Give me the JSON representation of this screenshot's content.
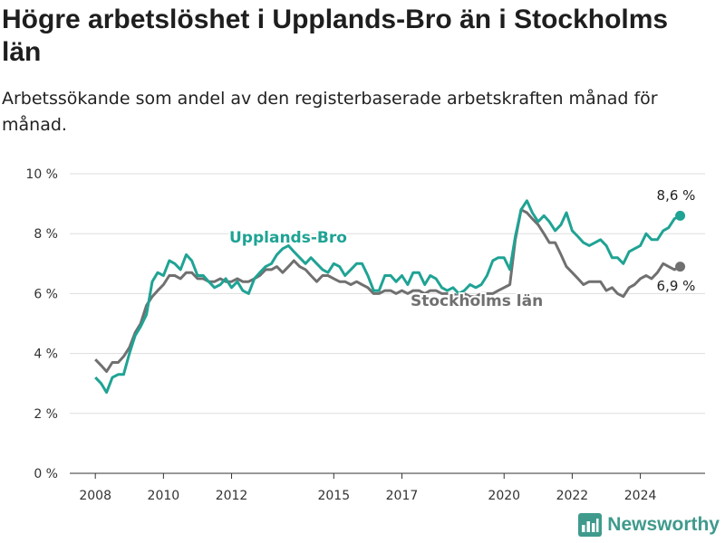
{
  "title": "Högre arbetslöshet i Upplands-Bro än i Stockholms län",
  "subtitle": "Arbetssökande som andel av den registerbaserade arbetskraften månad för månad.",
  "brand": {
    "name": "Newsworthy",
    "color": "#3f9a8c"
  },
  "chart_data": {
    "type": "line",
    "xlabel": "",
    "ylabel": "",
    "ylim": [
      0,
      10
    ],
    "xlim": [
      2007.25,
      2025.9
    ],
    "x_ticks": [
      {
        "value": 2008,
        "label": "2008"
      },
      {
        "value": 2010,
        "label": "2010"
      },
      {
        "value": 2012,
        "label": "2012"
      },
      {
        "value": 2015,
        "label": "2015"
      },
      {
        "value": 2017,
        "label": "2017"
      },
      {
        "value": 2020,
        "label": "2020"
      },
      {
        "value": 2022,
        "label": "2022"
      },
      {
        "value": 2024,
        "label": "2024"
      }
    ],
    "y_ticks": [
      {
        "value": 0,
        "label": "0 %"
      },
      {
        "value": 2,
        "label": "2 %"
      },
      {
        "value": 4,
        "label": "4 %"
      },
      {
        "value": 6,
        "label": "6 %"
      },
      {
        "value": 8,
        "label": "8 %"
      },
      {
        "value": 10,
        "label": "10 %"
      }
    ],
    "grid": true,
    "series": [
      {
        "name": "Upplands-Bro",
        "color": "#1fa394",
        "end_label": "8,6 %",
        "points": [
          [
            2008.0,
            3.2
          ],
          [
            2008.17,
            3.0
          ],
          [
            2008.33,
            2.7
          ],
          [
            2008.5,
            3.2
          ],
          [
            2008.67,
            3.3
          ],
          [
            2008.83,
            3.3
          ],
          [
            2009.0,
            4.0
          ],
          [
            2009.17,
            4.6
          ],
          [
            2009.33,
            4.9
          ],
          [
            2009.5,
            5.3
          ],
          [
            2009.67,
            6.4
          ],
          [
            2009.83,
            6.7
          ],
          [
            2010.0,
            6.6
          ],
          [
            2010.17,
            7.1
          ],
          [
            2010.33,
            7.0
          ],
          [
            2010.5,
            6.8
          ],
          [
            2010.67,
            7.3
          ],
          [
            2010.83,
            7.1
          ],
          [
            2011.0,
            6.6
          ],
          [
            2011.17,
            6.6
          ],
          [
            2011.33,
            6.4
          ],
          [
            2011.5,
            6.2
          ],
          [
            2011.67,
            6.3
          ],
          [
            2011.83,
            6.5
          ],
          [
            2012.0,
            6.2
          ],
          [
            2012.17,
            6.4
          ],
          [
            2012.33,
            6.1
          ],
          [
            2012.5,
            6.0
          ],
          [
            2012.67,
            6.5
          ],
          [
            2012.83,
            6.7
          ],
          [
            2013.0,
            6.9
          ],
          [
            2013.17,
            7.0
          ],
          [
            2013.33,
            7.3
          ],
          [
            2013.5,
            7.5
          ],
          [
            2013.67,
            7.6
          ],
          [
            2013.83,
            7.4
          ],
          [
            2014.0,
            7.2
          ],
          [
            2014.17,
            7.0
          ],
          [
            2014.33,
            7.2
          ],
          [
            2014.5,
            7.0
          ],
          [
            2014.67,
            6.8
          ],
          [
            2014.83,
            6.7
          ],
          [
            2015.0,
            7.0
          ],
          [
            2015.17,
            6.9
          ],
          [
            2015.33,
            6.6
          ],
          [
            2015.5,
            6.8
          ],
          [
            2015.67,
            7.0
          ],
          [
            2015.83,
            7.0
          ],
          [
            2016.0,
            6.6
          ],
          [
            2016.17,
            6.1
          ],
          [
            2016.33,
            6.1
          ],
          [
            2016.5,
            6.6
          ],
          [
            2016.67,
            6.6
          ],
          [
            2016.83,
            6.4
          ],
          [
            2017.0,
            6.6
          ],
          [
            2017.17,
            6.3
          ],
          [
            2017.33,
            6.7
          ],
          [
            2017.5,
            6.7
          ],
          [
            2017.67,
            6.3
          ],
          [
            2017.83,
            6.6
          ],
          [
            2018.0,
            6.5
          ],
          [
            2018.17,
            6.2
          ],
          [
            2018.33,
            6.1
          ],
          [
            2018.5,
            6.2
          ],
          [
            2018.67,
            6.0
          ],
          [
            2018.83,
            6.1
          ],
          [
            2019.0,
            6.3
          ],
          [
            2019.17,
            6.2
          ],
          [
            2019.33,
            6.3
          ],
          [
            2019.5,
            6.6
          ],
          [
            2019.67,
            7.1
          ],
          [
            2019.83,
            7.2
          ],
          [
            2020.0,
            7.2
          ],
          [
            2020.17,
            6.8
          ],
          [
            2020.33,
            7.9
          ],
          [
            2020.5,
            8.8
          ],
          [
            2020.67,
            9.1
          ],
          [
            2020.83,
            8.7
          ],
          [
            2021.0,
            8.4
          ],
          [
            2021.17,
            8.6
          ],
          [
            2021.33,
            8.4
          ],
          [
            2021.5,
            8.1
          ],
          [
            2021.67,
            8.3
          ],
          [
            2021.83,
            8.7
          ],
          [
            2022.0,
            8.1
          ],
          [
            2022.17,
            7.9
          ],
          [
            2022.33,
            7.7
          ],
          [
            2022.5,
            7.6
          ],
          [
            2022.67,
            7.7
          ],
          [
            2022.83,
            7.8
          ],
          [
            2023.0,
            7.6
          ],
          [
            2023.17,
            7.2
          ],
          [
            2023.33,
            7.2
          ],
          [
            2023.5,
            7.0
          ],
          [
            2023.67,
            7.4
          ],
          [
            2023.83,
            7.5
          ],
          [
            2024.0,
            7.6
          ],
          [
            2024.17,
            8.0
          ],
          [
            2024.33,
            7.8
          ],
          [
            2024.5,
            7.8
          ],
          [
            2024.67,
            8.1
          ],
          [
            2024.83,
            8.2
          ],
          [
            2025.0,
            8.5
          ],
          [
            2025.17,
            8.6
          ]
        ]
      },
      {
        "name": "Stockholms län",
        "color": "#707070",
        "end_label": "6,9 %",
        "points": [
          [
            2008.0,
            3.8
          ],
          [
            2008.17,
            3.6
          ],
          [
            2008.33,
            3.4
          ],
          [
            2008.5,
            3.7
          ],
          [
            2008.67,
            3.7
          ],
          [
            2008.83,
            3.9
          ],
          [
            2009.0,
            4.2
          ],
          [
            2009.17,
            4.7
          ],
          [
            2009.33,
            5.0
          ],
          [
            2009.5,
            5.6
          ],
          [
            2009.67,
            5.9
          ],
          [
            2009.83,
            6.1
          ],
          [
            2010.0,
            6.3
          ],
          [
            2010.17,
            6.6
          ],
          [
            2010.33,
            6.6
          ],
          [
            2010.5,
            6.5
          ],
          [
            2010.67,
            6.7
          ],
          [
            2010.83,
            6.7
          ],
          [
            2011.0,
            6.5
          ],
          [
            2011.17,
            6.5
          ],
          [
            2011.33,
            6.4
          ],
          [
            2011.5,
            6.4
          ],
          [
            2011.67,
            6.5
          ],
          [
            2011.83,
            6.4
          ],
          [
            2012.0,
            6.4
          ],
          [
            2012.17,
            6.5
          ],
          [
            2012.33,
            6.4
          ],
          [
            2012.5,
            6.4
          ],
          [
            2012.67,
            6.5
          ],
          [
            2012.83,
            6.6
          ],
          [
            2013.0,
            6.8
          ],
          [
            2013.17,
            6.8
          ],
          [
            2013.33,
            6.9
          ],
          [
            2013.5,
            6.7
          ],
          [
            2013.67,
            6.9
          ],
          [
            2013.83,
            7.1
          ],
          [
            2014.0,
            6.9
          ],
          [
            2014.17,
            6.8
          ],
          [
            2014.33,
            6.6
          ],
          [
            2014.5,
            6.4
          ],
          [
            2014.67,
            6.6
          ],
          [
            2014.83,
            6.6
          ],
          [
            2015.0,
            6.5
          ],
          [
            2015.17,
            6.4
          ],
          [
            2015.33,
            6.4
          ],
          [
            2015.5,
            6.3
          ],
          [
            2015.67,
            6.4
          ],
          [
            2015.83,
            6.3
          ],
          [
            2016.0,
            6.2
          ],
          [
            2016.17,
            6.0
          ],
          [
            2016.33,
            6.0
          ],
          [
            2016.5,
            6.1
          ],
          [
            2016.67,
            6.1
          ],
          [
            2016.83,
            6.0
          ],
          [
            2017.0,
            6.1
          ],
          [
            2017.17,
            6.0
          ],
          [
            2017.33,
            6.1
          ],
          [
            2017.5,
            6.1
          ],
          [
            2017.67,
            6.0
          ],
          [
            2017.83,
            6.1
          ],
          [
            2018.0,
            6.1
          ],
          [
            2018.17,
            6.0
          ],
          [
            2018.33,
            6.0
          ],
          [
            2018.5,
            6.0
          ],
          [
            2018.67,
            5.9
          ],
          [
            2018.83,
            6.0
          ],
          [
            2019.0,
            5.9
          ],
          [
            2019.17,
            5.9
          ],
          [
            2019.33,
            6.0
          ],
          [
            2019.5,
            6.0
          ],
          [
            2019.67,
            6.0
          ],
          [
            2019.83,
            6.1
          ],
          [
            2020.0,
            6.2
          ],
          [
            2020.17,
            6.3
          ],
          [
            2020.33,
            7.8
          ],
          [
            2020.5,
            8.8
          ],
          [
            2020.67,
            8.7
          ],
          [
            2020.83,
            8.5
          ],
          [
            2021.0,
            8.3
          ],
          [
            2021.17,
            8.0
          ],
          [
            2021.33,
            7.7
          ],
          [
            2021.5,
            7.7
          ],
          [
            2021.67,
            7.3
          ],
          [
            2021.83,
            6.9
          ],
          [
            2022.0,
            6.7
          ],
          [
            2022.17,
            6.5
          ],
          [
            2022.33,
            6.3
          ],
          [
            2022.5,
            6.4
          ],
          [
            2022.67,
            6.4
          ],
          [
            2022.83,
            6.4
          ],
          [
            2023.0,
            6.1
          ],
          [
            2023.17,
            6.2
          ],
          [
            2023.33,
            6.0
          ],
          [
            2023.5,
            5.9
          ],
          [
            2023.67,
            6.2
          ],
          [
            2023.83,
            6.3
          ],
          [
            2024.0,
            6.5
          ],
          [
            2024.17,
            6.6
          ],
          [
            2024.33,
            6.5
          ],
          [
            2024.5,
            6.7
          ],
          [
            2024.67,
            7.0
          ],
          [
            2024.83,
            6.9
          ],
          [
            2025.0,
            6.8
          ],
          [
            2025.17,
            6.9
          ]
        ]
      }
    ]
  }
}
